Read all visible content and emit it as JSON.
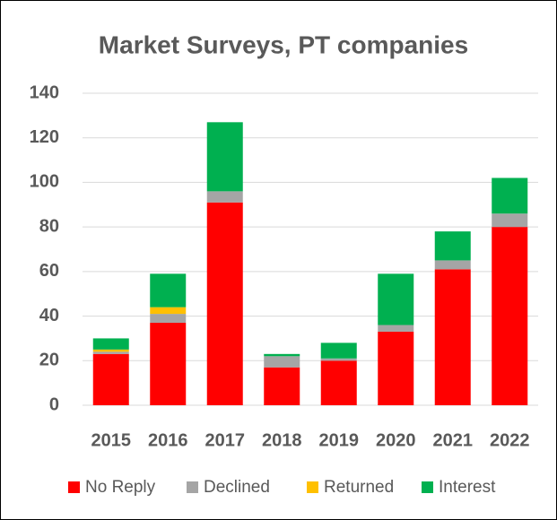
{
  "chart_data": {
    "type": "stacked_bar",
    "title": "Market Surveys, PT companies",
    "categories": [
      "2015",
      "2016",
      "2017",
      "2018",
      "2019",
      "2020",
      "2021",
      "2022"
    ],
    "series": [
      {
        "name": "No Reply",
        "color": "#ff0000",
        "values": [
          23,
          37,
          91,
          17,
          20,
          33,
          61,
          80
        ]
      },
      {
        "name": "Declined",
        "color": "#a5a5a5",
        "values": [
          1,
          4,
          5,
          5,
          1,
          3,
          4,
          6
        ]
      },
      {
        "name": "Returned",
        "color": "#ffc000",
        "values": [
          1,
          3,
          0,
          0,
          0,
          0,
          0,
          0
        ]
      },
      {
        "name": "Interest",
        "color": "#00b050",
        "values": [
          5,
          15,
          31,
          1,
          7,
          23,
          13,
          16
        ]
      }
    ],
    "ylim": [
      0,
      140
    ],
    "yticks": [
      0,
      20,
      40,
      60,
      80,
      100,
      120,
      140
    ],
    "grid": true,
    "legend": "bottom"
  }
}
